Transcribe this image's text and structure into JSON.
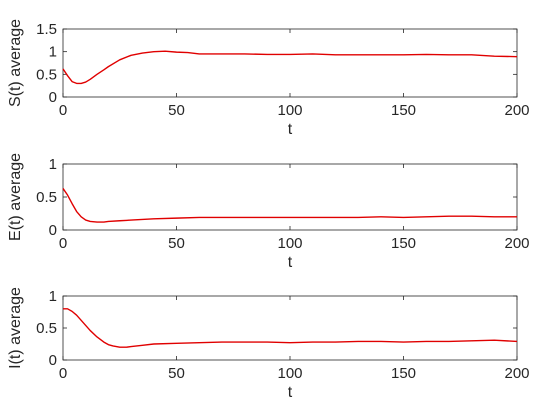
{
  "figure": {
    "colors": {
      "line": "#e00000",
      "axis": "#262626",
      "background": "#ffffff"
    }
  },
  "chart_data": [
    {
      "type": "line",
      "ylabel": "S(t) average",
      "xlabel": "t",
      "xlim": [
        0,
        200
      ],
      "ylim": [
        0,
        1.5
      ],
      "xticks": [
        0,
        50,
        100,
        150,
        200
      ],
      "xtick_labels": [
        "0",
        "50",
        "100",
        "150",
        "200"
      ],
      "yticks": [
        0,
        0.5,
        1,
        1.5
      ],
      "ytick_labels": [
        "0",
        "0.5",
        "1",
        "1.5"
      ],
      "grid": false,
      "series": [
        {
          "x": [
            0,
            2,
            4,
            6,
            8,
            10,
            12,
            15,
            18,
            20,
            25,
            30,
            35,
            40,
            45,
            50,
            55,
            60,
            70,
            80,
            90,
            100,
            110,
            120,
            130,
            140,
            150,
            160,
            170,
            180,
            190,
            200
          ],
          "values": [
            0.62,
            0.47,
            0.34,
            0.3,
            0.3,
            0.33,
            0.39,
            0.5,
            0.6,
            0.67,
            0.82,
            0.92,
            0.97,
            1.0,
            1.01,
            0.99,
            0.98,
            0.95,
            0.95,
            0.95,
            0.94,
            0.94,
            0.95,
            0.93,
            0.93,
            0.93,
            0.93,
            0.94,
            0.93,
            0.93,
            0.9,
            0.89
          ]
        }
      ]
    },
    {
      "type": "line",
      "ylabel": "E(t) average",
      "xlabel": "t",
      "xlim": [
        0,
        200
      ],
      "ylim": [
        0,
        1
      ],
      "xticks": [
        0,
        50,
        100,
        150,
        200
      ],
      "xtick_labels": [
        "0",
        "50",
        "100",
        "150",
        "200"
      ],
      "yticks": [
        0,
        0.5,
        1
      ],
      "ytick_labels": [
        "0",
        "0.5",
        "1"
      ],
      "grid": false,
      "series": [
        {
          "x": [
            0,
            2,
            4,
            6,
            8,
            10,
            12,
            15,
            18,
            20,
            25,
            30,
            35,
            40,
            50,
            60,
            70,
            80,
            90,
            100,
            110,
            120,
            130,
            140,
            150,
            160,
            170,
            180,
            190,
            200
          ],
          "values": [
            0.63,
            0.53,
            0.4,
            0.28,
            0.2,
            0.15,
            0.13,
            0.12,
            0.12,
            0.13,
            0.14,
            0.15,
            0.16,
            0.17,
            0.18,
            0.19,
            0.19,
            0.19,
            0.19,
            0.19,
            0.19,
            0.19,
            0.19,
            0.2,
            0.19,
            0.2,
            0.21,
            0.21,
            0.2,
            0.2
          ]
        }
      ]
    },
    {
      "type": "line",
      "ylabel": "I(t) average",
      "xlabel": "t",
      "xlim": [
        0,
        200
      ],
      "ylim": [
        0,
        1
      ],
      "xticks": [
        0,
        50,
        100,
        150,
        200
      ],
      "xtick_labels": [
        "0",
        "50",
        "100",
        "150",
        "200"
      ],
      "yticks": [
        0,
        0.5,
        1
      ],
      "ytick_labels": [
        "0",
        "0.5",
        "1"
      ],
      "grid": false,
      "series": [
        {
          "x": [
            0,
            2,
            4,
            6,
            8,
            10,
            12,
            15,
            18,
            20,
            22,
            25,
            28,
            30,
            35,
            40,
            50,
            60,
            70,
            80,
            90,
            100,
            110,
            120,
            130,
            140,
            150,
            160,
            170,
            180,
            190,
            200
          ],
          "values": [
            0.8,
            0.8,
            0.76,
            0.7,
            0.62,
            0.54,
            0.46,
            0.36,
            0.28,
            0.24,
            0.22,
            0.2,
            0.2,
            0.21,
            0.23,
            0.25,
            0.26,
            0.27,
            0.28,
            0.28,
            0.28,
            0.27,
            0.28,
            0.28,
            0.29,
            0.29,
            0.28,
            0.29,
            0.29,
            0.3,
            0.31,
            0.29
          ]
        }
      ]
    }
  ]
}
